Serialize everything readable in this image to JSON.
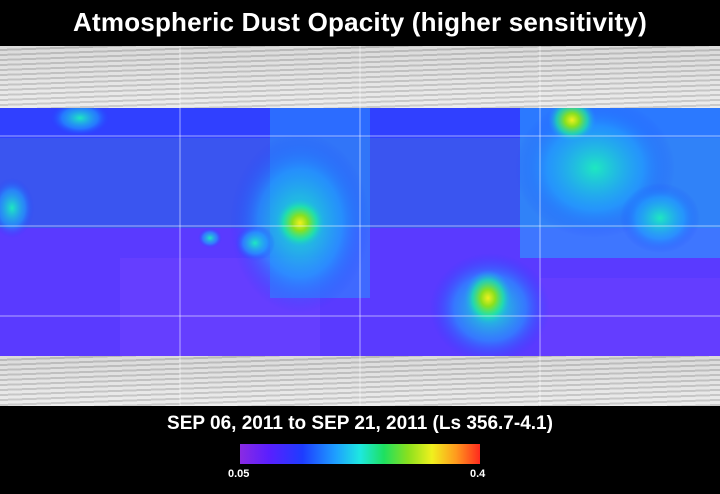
{
  "title": "Atmospheric Dust Opacity (higher sensitivity)",
  "date_range": "SEP 06, 2011 to SEP 21, 2011 (Ls 356.7-4.1)",
  "colorbar": {
    "min_label": "0.05",
    "max_label": "0.4",
    "colors": [
      "#8a2be2",
      "#1e3cff",
      "#1ea0ff",
      "#1ee8e0",
      "#1ee060",
      "#f0f01e",
      "#ff9a1e",
      "#ff2a1e"
    ]
  }
}
